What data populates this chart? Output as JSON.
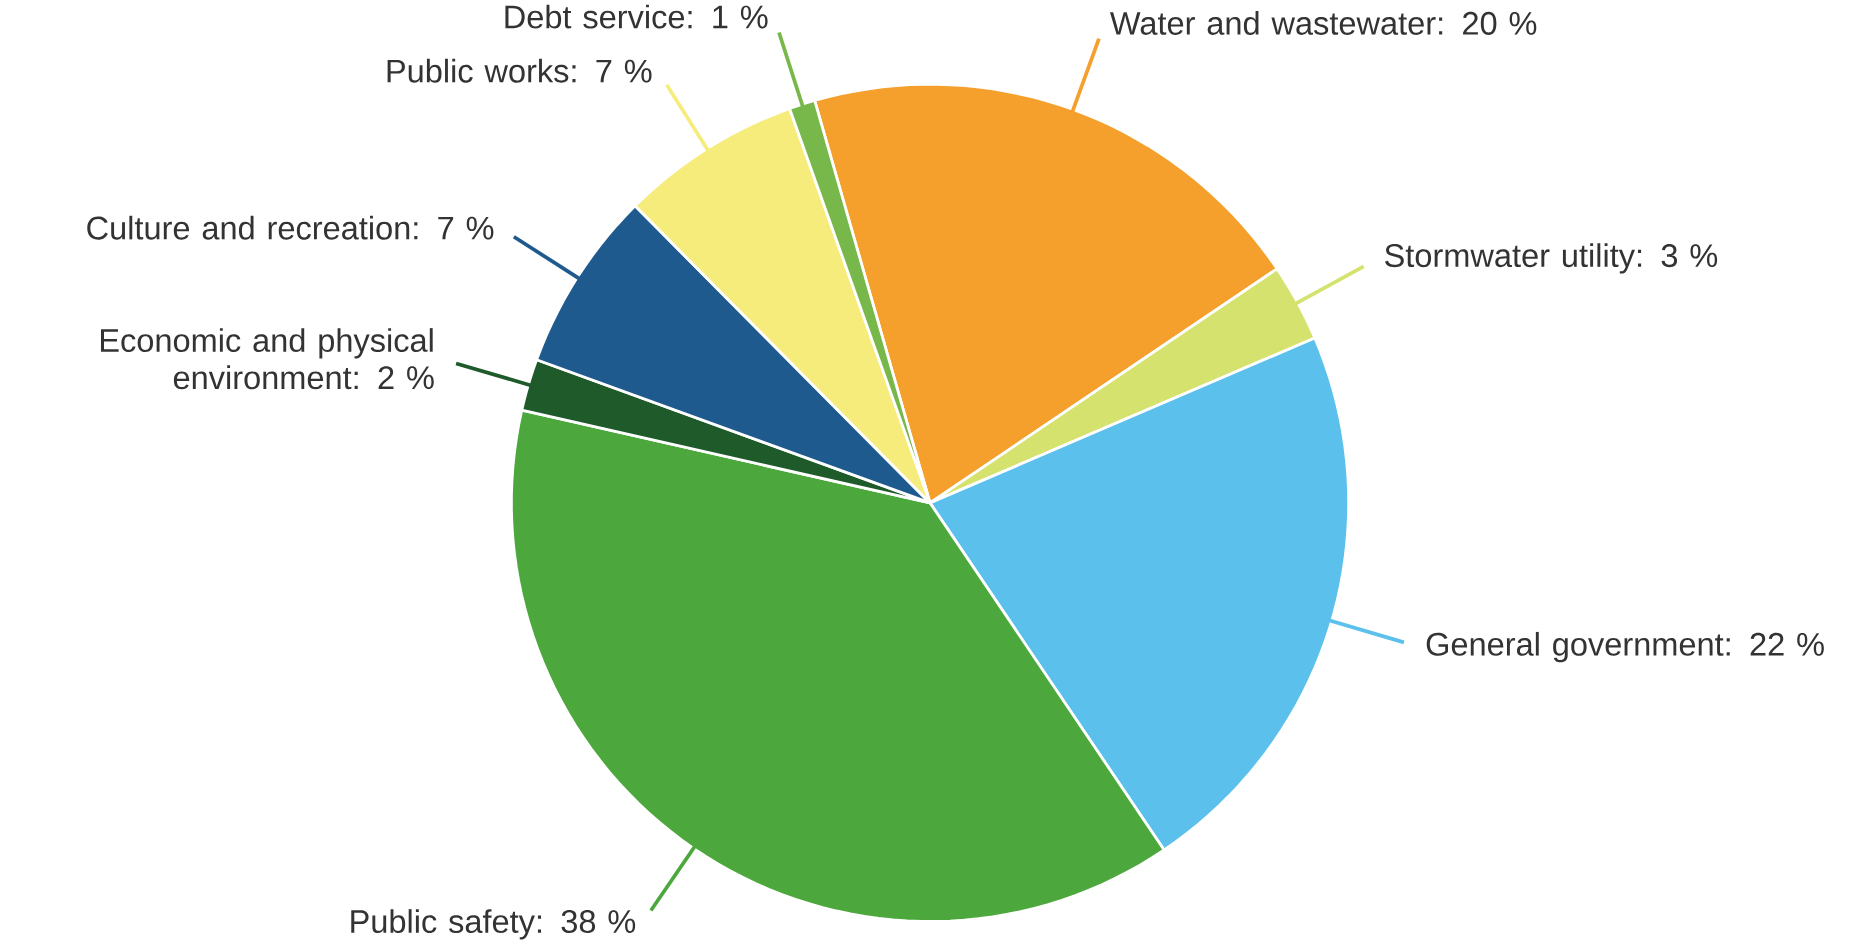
{
  "chart_data": {
    "type": "pie",
    "categories": [
      "Water and wastewater: 20 %",
      "Stormwater utility: 3 %",
      "General government: 22 %",
      "Public safety: 38 %",
      "Economic and physical environment: 2 %",
      "Culture and recreation: 7 %",
      "Public works: 7 %",
      "Debt service: 1 %"
    ],
    "values": [
      20,
      3,
      22,
      38,
      2,
      7,
      7,
      1
    ],
    "colors": [
      "#f5a02c",
      "#d6e26e",
      "#5cc0ec",
      "#4ca83c",
      "#1e5a2a",
      "#1f5a8e",
      "#f6ec7c",
      "#78b84a"
    ]
  }
}
